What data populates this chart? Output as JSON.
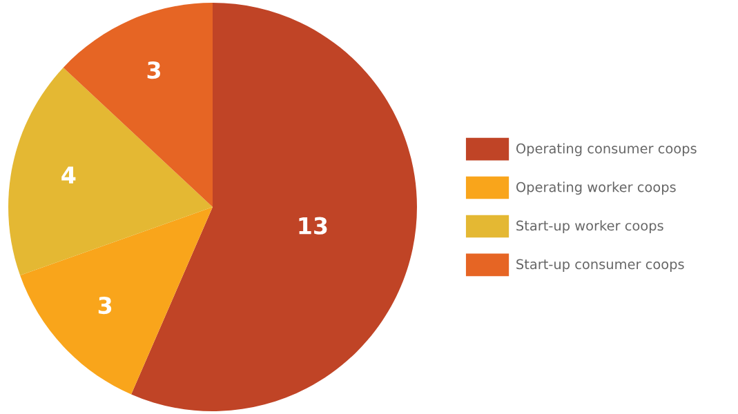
{
  "chart_data": {
    "type": "pie",
    "categories": [
      "Operating consumer coops",
      "Operating worker coops",
      "Start-up worker coops",
      "Start-up consumer coops"
    ],
    "values": [
      13,
      3,
      4,
      3
    ],
    "colors": [
      "#c04426",
      "#f9a51b",
      "#e4b833",
      "#e66524"
    ],
    "data_labels": true,
    "legend": "right"
  }
}
